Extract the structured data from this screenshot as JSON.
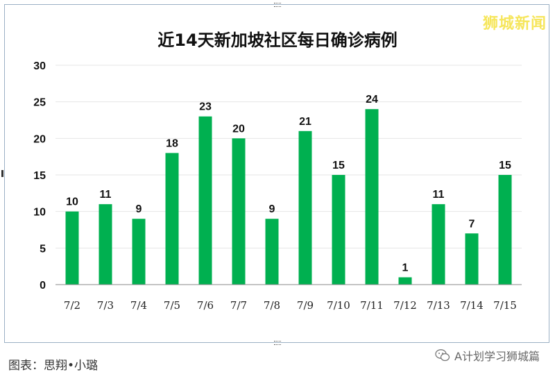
{
  "watermark_top": "狮城新闻",
  "caption": "图表：思翔•小璐",
  "watermark_bottom": "A计划学习狮城篇",
  "icons": {
    "wechat": "wechat-icon"
  },
  "colors": {
    "bar": "#00b050",
    "accent": "#f6e65b"
  },
  "chart_data": {
    "type": "bar",
    "title": "近14天新加坡社区每日确诊病例",
    "xlabel": "",
    "ylabel": "",
    "categories": [
      "7/2",
      "7/3",
      "7/4",
      "7/5",
      "7/6",
      "7/7",
      "7/8",
      "7/9",
      "7/10",
      "7/11",
      "7/12",
      "7/13",
      "7/14",
      "7/15"
    ],
    "values": [
      10,
      11,
      9,
      18,
      23,
      20,
      9,
      21,
      15,
      24,
      1,
      11,
      7,
      15
    ],
    "ylim": [
      0,
      30
    ],
    "yticks": [
      0,
      5,
      10,
      15,
      20,
      25,
      30
    ],
    "grid": true,
    "data_labels": true,
    "legend": "none"
  }
}
